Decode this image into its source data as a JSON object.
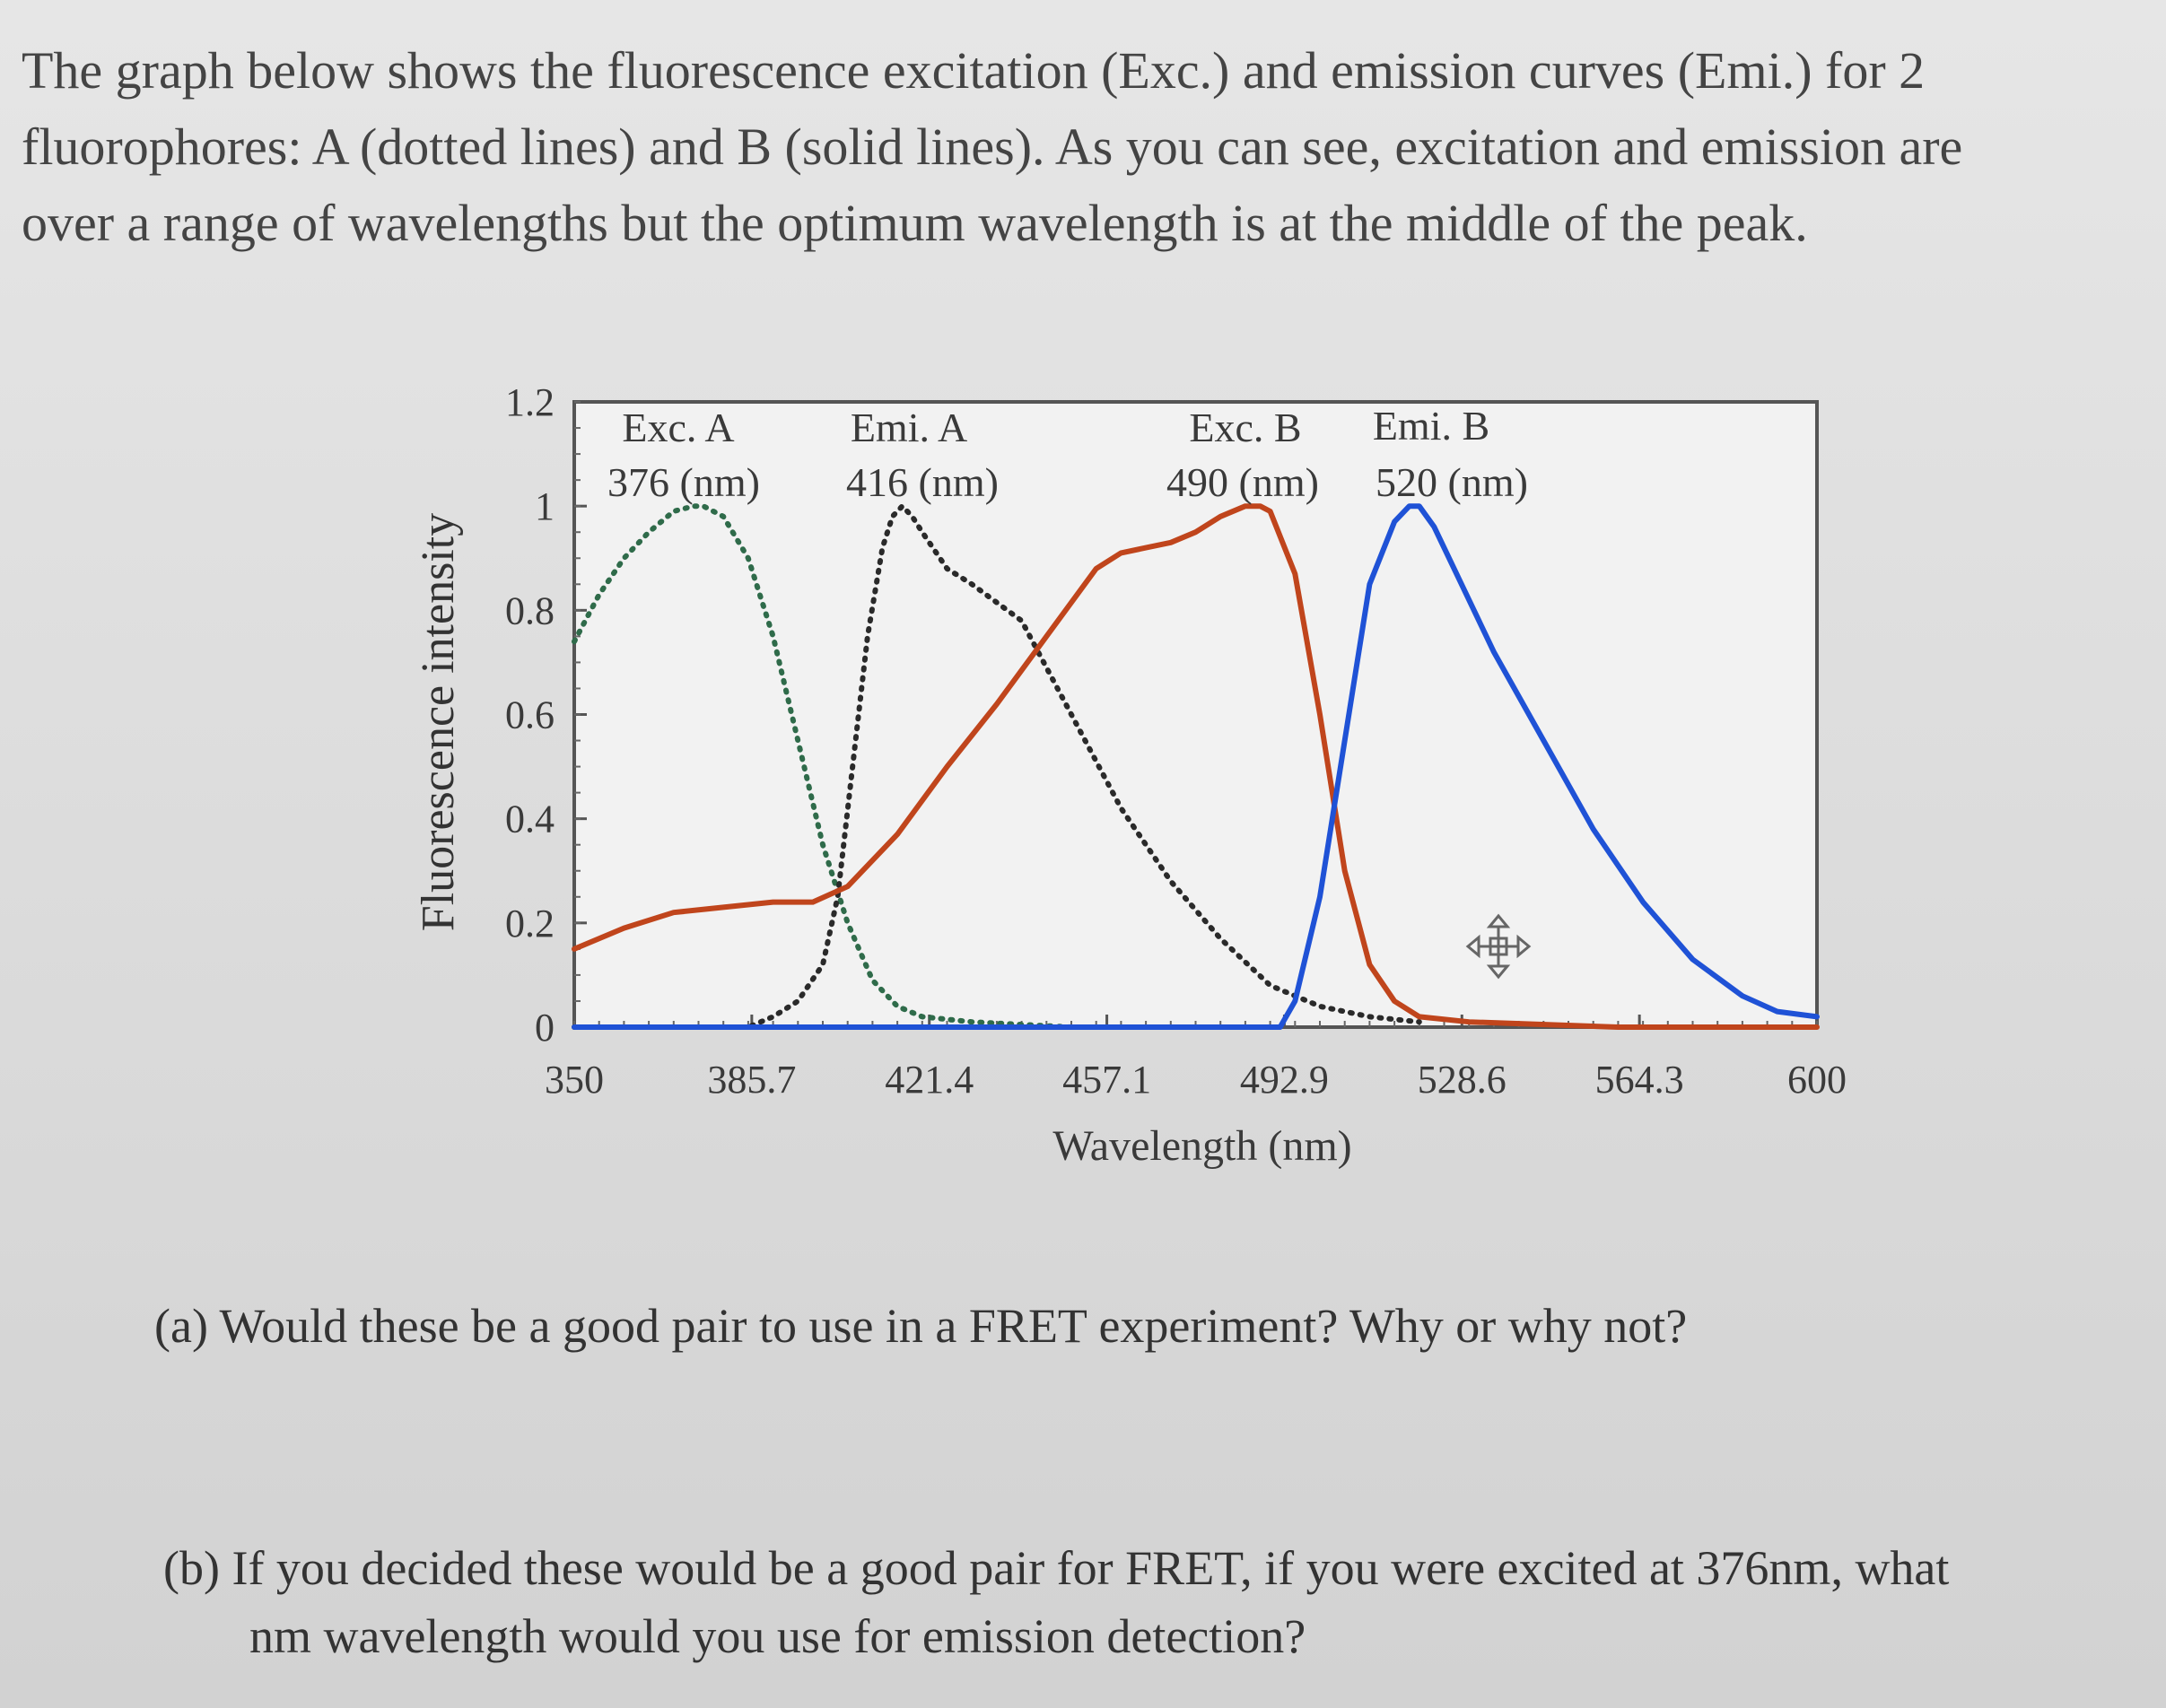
{
  "intro": {
    "line1": "The graph below shows the fluorescence excitation (Exc.) and emission curves (Emi.) for 2",
    "line2": "fluorophores: A (dotted lines) and B (solid lines). As you can see, excitation and emission are",
    "line3": "over a range of wavelengths but the optimum wavelength is at the middle of the peak."
  },
  "questions": {
    "a": "(a) Would these be a good pair to use in a FRET experiment? Why or why not?",
    "b_line1": "(b) If you decided these would be a good pair for FRET, if you were excited at 376nm, what",
    "b_line2": "nm wavelength would you use for emission detection?"
  },
  "colors": {
    "exc_a": "#2f6b4a",
    "emi_a": "#2a2a2a",
    "exc_b": "#c0451c",
    "emi_b": "#1f52d6"
  },
  "chart_data": {
    "type": "line",
    "xlabel": "Wavelength (nm)",
    "ylabel": "Fluorescence intensity",
    "xlim": [
      350,
      600
    ],
    "ylim": [
      0,
      1.2
    ],
    "x_ticks": [
      "350",
      "385.7",
      "421.4",
      "457.1",
      "492.9",
      "528.6",
      "564.3",
      "600"
    ],
    "y_ticks": [
      "0",
      "0.2",
      "0.4",
      "0.6",
      "0.8",
      "1",
      "1.2"
    ],
    "annotations": [
      {
        "line1": "Exc. A",
        "line2": "376 (nm)"
      },
      {
        "line1": "Emi. A",
        "line2": "416 (nm)"
      },
      {
        "line1": "Exc. B",
        "line2": "490 (nm)"
      },
      {
        "line1": "Emi. B",
        "line2": "520 (nm)"
      }
    ],
    "series": [
      {
        "key": "exc_a",
        "style": "dotted",
        "x": [
          350,
          355,
          360,
          365,
          370,
          374,
          376,
          380,
          385,
          390,
          395,
          400,
          405,
          410,
          415,
          420,
          430,
          450,
          492
        ],
        "y": [
          0.74,
          0.83,
          0.9,
          0.95,
          0.99,
          1.0,
          1.0,
          0.98,
          0.9,
          0.75,
          0.55,
          0.35,
          0.2,
          0.09,
          0.04,
          0.02,
          0.01,
          0.0,
          0.0
        ]
      },
      {
        "key": "emi_a",
        "style": "dotted",
        "x": [
          350,
          380,
          385,
          390,
          395,
          400,
          403,
          406,
          409,
          412,
          414,
          416,
          418,
          420,
          425,
          430,
          440,
          450,
          460,
          470,
          480,
          490,
          500,
          510,
          520
        ],
        "y": [
          0.0,
          0.0,
          0.0,
          0.02,
          0.05,
          0.12,
          0.25,
          0.5,
          0.75,
          0.92,
          0.98,
          1.0,
          0.98,
          0.95,
          0.88,
          0.85,
          0.78,
          0.6,
          0.42,
          0.28,
          0.17,
          0.08,
          0.04,
          0.02,
          0.01
        ]
      },
      {
        "key": "exc_b",
        "style": "solid",
        "x": [
          350,
          360,
          370,
          380,
          390,
          398,
          405,
          415,
          425,
          435,
          445,
          455,
          460,
          465,
          470,
          475,
          480,
          485,
          488,
          490,
          495,
          500,
          505,
          510,
          515,
          520,
          530,
          560,
          600
        ],
        "y": [
          0.15,
          0.19,
          0.22,
          0.23,
          0.24,
          0.24,
          0.27,
          0.37,
          0.5,
          0.62,
          0.75,
          0.88,
          0.91,
          0.92,
          0.93,
          0.95,
          0.98,
          1.0,
          1.0,
          0.99,
          0.87,
          0.6,
          0.3,
          0.12,
          0.05,
          0.02,
          0.01,
          0.0,
          0.0
        ]
      },
      {
        "key": "emi_b",
        "style": "solid",
        "x": [
          350,
          492,
          495,
          500,
          505,
          510,
          515,
          518,
          520,
          523,
          528,
          535,
          545,
          555,
          565,
          575,
          585,
          592,
          600
        ],
        "y": [
          0.0,
          0.0,
          0.05,
          0.25,
          0.55,
          0.85,
          0.97,
          1.0,
          1.0,
          0.96,
          0.86,
          0.72,
          0.55,
          0.38,
          0.24,
          0.13,
          0.06,
          0.03,
          0.02
        ]
      }
    ]
  },
  "cursor": {
    "icon": "move-cursor-icon"
  }
}
